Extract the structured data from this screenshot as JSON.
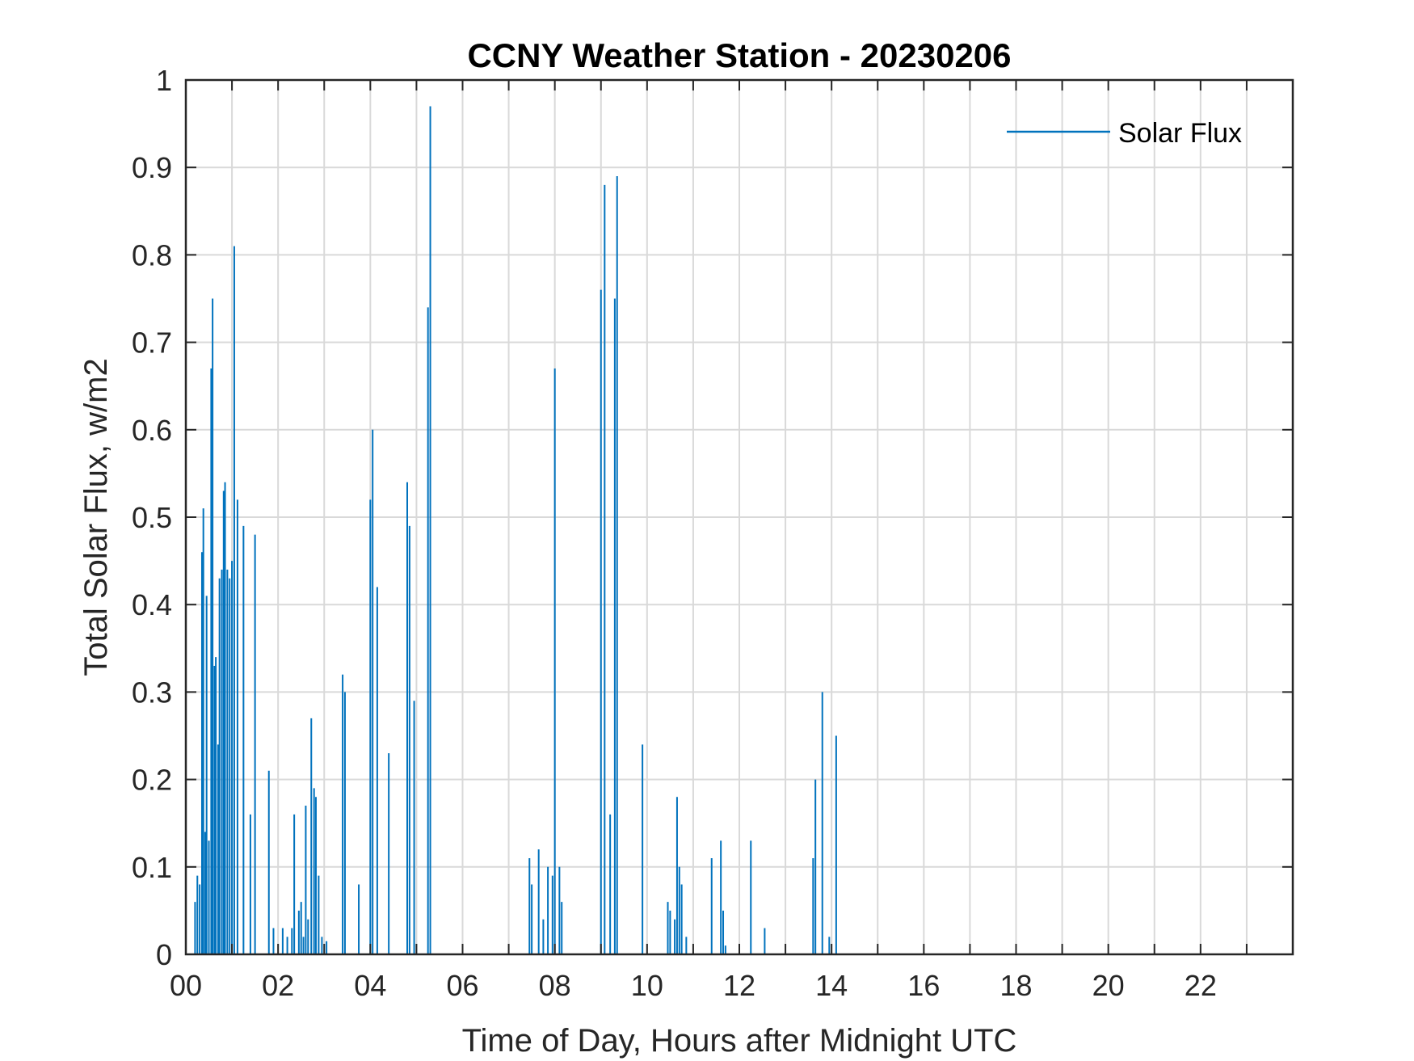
{
  "chart_data": {
    "type": "line",
    "title": "CCNY Weather Station - 20230206",
    "xlabel": "Time of Day, Hours after Midnight UTC",
    "ylabel": "Total Solar Flux, w/m2",
    "xlim": [
      0,
      24
    ],
    "ylim": [
      0,
      1
    ],
    "grid": true,
    "legend_position": "top-right",
    "x_ticks": [
      0,
      2,
      4,
      6,
      8,
      10,
      12,
      14,
      16,
      18,
      20,
      22
    ],
    "x_tick_labels": [
      "00",
      "02",
      "04",
      "06",
      "08",
      "10",
      "12",
      "14",
      "16",
      "18",
      "20",
      "22"
    ],
    "y_ticks": [
      0,
      0.1,
      0.2,
      0.3,
      0.4,
      0.5,
      0.6,
      0.7,
      0.8,
      0.9,
      1
    ],
    "y_tick_labels": [
      "0",
      "0.1",
      "0.2",
      "0.3",
      "0.4",
      "0.5",
      "0.6",
      "0.7",
      "0.8",
      "0.9",
      "1"
    ],
    "series": [
      {
        "name": "Solar Flux",
        "color": "#0072BD",
        "spikes": [
          [
            0.2,
            0.06
          ],
          [
            0.25,
            0.09
          ],
          [
            0.3,
            0.08
          ],
          [
            0.35,
            0.46
          ],
          [
            0.38,
            0.51
          ],
          [
            0.42,
            0.14
          ],
          [
            0.45,
            0.41
          ],
          [
            0.5,
            0.13
          ],
          [
            0.55,
            0.67
          ],
          [
            0.58,
            0.75
          ],
          [
            0.62,
            0.33
          ],
          [
            0.65,
            0.34
          ],
          [
            0.7,
            0.24
          ],
          [
            0.73,
            0.43
          ],
          [
            0.78,
            0.44
          ],
          [
            0.82,
            0.53
          ],
          [
            0.85,
            0.54
          ],
          [
            0.9,
            0.44
          ],
          [
            0.95,
            0.43
          ],
          [
            1.0,
            0.45
          ],
          [
            1.05,
            0.81
          ],
          [
            1.12,
            0.52
          ],
          [
            1.25,
            0.49
          ],
          [
            1.4,
            0.16
          ],
          [
            1.5,
            0.48
          ],
          [
            1.8,
            0.21
          ],
          [
            1.9,
            0.03
          ],
          [
            2.1,
            0.03
          ],
          [
            2.2,
            0.02
          ],
          [
            2.3,
            0.03
          ],
          [
            2.35,
            0.16
          ],
          [
            2.45,
            0.05
          ],
          [
            2.5,
            0.06
          ],
          [
            2.55,
            0.02
          ],
          [
            2.6,
            0.17
          ],
          [
            2.65,
            0.04
          ],
          [
            2.72,
            0.27
          ],
          [
            2.78,
            0.19
          ],
          [
            2.82,
            0.18
          ],
          [
            2.88,
            0.09
          ],
          [
            2.95,
            0.02
          ],
          [
            3.05,
            0.015
          ],
          [
            3.4,
            0.32
          ],
          [
            3.45,
            0.3
          ],
          [
            3.75,
            0.08
          ],
          [
            4.0,
            0.52
          ],
          [
            4.05,
            0.6
          ],
          [
            4.15,
            0.42
          ],
          [
            4.4,
            0.23
          ],
          [
            4.8,
            0.54
          ],
          [
            4.85,
            0.49
          ],
          [
            4.95,
            0.29
          ],
          [
            5.25,
            0.74
          ],
          [
            5.3,
            0.97
          ],
          [
            7.45,
            0.11
          ],
          [
            7.5,
            0.08
          ],
          [
            7.65,
            0.12
          ],
          [
            7.75,
            0.04
          ],
          [
            7.85,
            0.1
          ],
          [
            7.95,
            0.09
          ],
          [
            8.0,
            0.67
          ],
          [
            8.1,
            0.1
          ],
          [
            8.15,
            0.06
          ],
          [
            9.0,
            0.76
          ],
          [
            9.08,
            0.88
          ],
          [
            9.2,
            0.16
          ],
          [
            9.3,
            0.75
          ],
          [
            9.35,
            0.89
          ],
          [
            9.9,
            0.24
          ],
          [
            10.45,
            0.06
          ],
          [
            10.5,
            0.05
          ],
          [
            10.6,
            0.04
          ],
          [
            10.65,
            0.18
          ],
          [
            10.7,
            0.1
          ],
          [
            10.75,
            0.08
          ],
          [
            10.85,
            0.02
          ],
          [
            11.4,
            0.11
          ],
          [
            11.6,
            0.13
          ],
          [
            11.65,
            0.05
          ],
          [
            11.7,
            0.01
          ],
          [
            12.25,
            0.13
          ],
          [
            12.55,
            0.03
          ],
          [
            13.6,
            0.11
          ],
          [
            13.65,
            0.2
          ],
          [
            13.8,
            0.3
          ],
          [
            13.95,
            0.02
          ],
          [
            14.1,
            0.25
          ]
        ]
      }
    ]
  }
}
